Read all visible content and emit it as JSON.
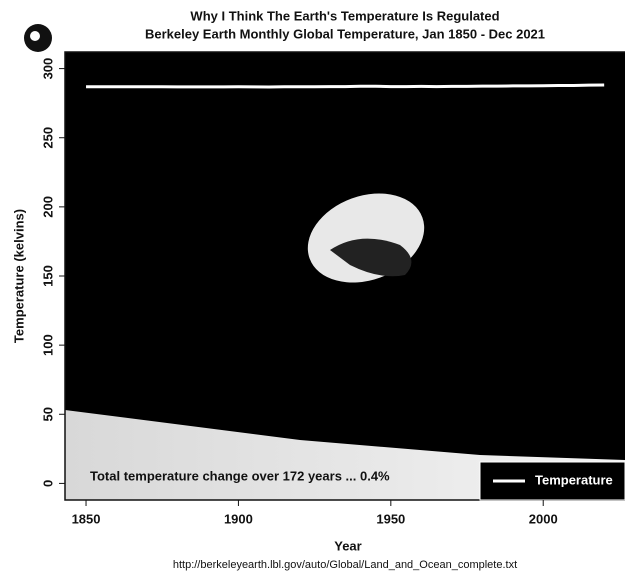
{
  "chart_data": {
    "type": "line",
    "title": "Why I Think The Earth's Temperature Is Regulated",
    "subtitle": "Berkeley Earth Monthly Global Temperature, Jan 1850 - Dec 2021",
    "xlabel": "Year",
    "ylabel": "Temperature (kelvins)",
    "source": "http://berkeleyearth.lbl.gov/auto/Global/Land_and_Ocean_complete.txt",
    "annotation": "Total temperature change over 172 years ... 0.4%",
    "x": [
      1850,
      1855,
      1860,
      1865,
      1870,
      1875,
      1880,
      1885,
      1890,
      1895,
      1900,
      1905,
      1910,
      1915,
      1920,
      1925,
      1930,
      1935,
      1940,
      1945,
      1950,
      1955,
      1960,
      1965,
      1970,
      1975,
      1980,
      1985,
      1990,
      1995,
      2000,
      2005,
      2010,
      2015,
      2020
    ],
    "series": [
      {
        "name": "Temperature",
        "color": "#ffffff",
        "values": [
          286.9,
          286.9,
          286.9,
          286.9,
          286.9,
          286.9,
          286.8,
          286.8,
          286.8,
          286.8,
          286.9,
          286.8,
          286.7,
          286.9,
          286.9,
          286.9,
          287.0,
          287.0,
          287.2,
          287.2,
          287.0,
          287.0,
          287.1,
          287.0,
          287.1,
          287.1,
          287.3,
          287.3,
          287.5,
          287.5,
          287.6,
          287.8,
          287.8,
          288.0,
          288.1
        ]
      }
    ],
    "xlim": [
      1843.1,
      2028.8
    ],
    "xticks": [
      1850,
      1900,
      1950,
      2000
    ],
    "ylim": [
      -12,
      312
    ],
    "yticks": [
      0,
      50,
      100,
      150,
      200,
      250,
      300
    ],
    "legend": "bottom-right"
  }
}
